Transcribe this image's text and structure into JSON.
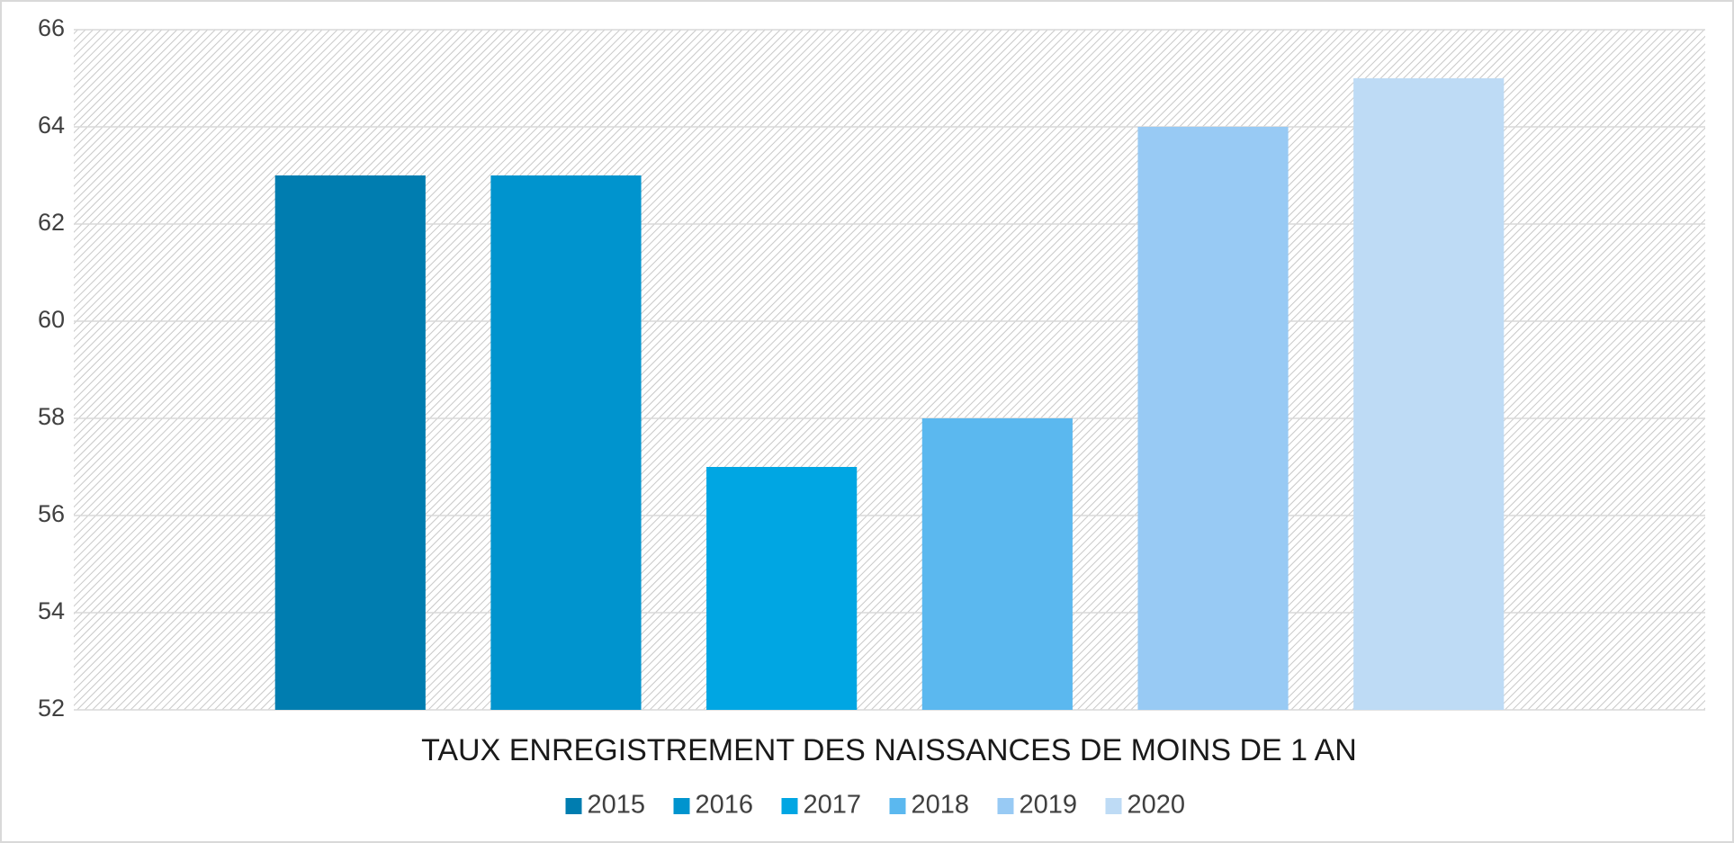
{
  "chart_data": {
    "type": "bar",
    "categories": [
      "TAUX ENREGISTREMENT DES NAISSANCES DE MOINS DE 1 AN"
    ],
    "series": [
      {
        "name": "2015",
        "color": "#007db0",
        "values": [
          63
        ]
      },
      {
        "name": "2016",
        "color": "#0094ce",
        "values": [
          63
        ]
      },
      {
        "name": "2017",
        "color": "#00a6e3",
        "values": [
          57
        ]
      },
      {
        "name": "2018",
        "color": "#5bb8ef",
        "values": [
          58
        ]
      },
      {
        "name": "2019",
        "color": "#98caf4",
        "values": [
          64
        ]
      },
      {
        "name": "2020",
        "color": "#bedbf5",
        "values": [
          65
        ]
      }
    ],
    "ylim": [
      52,
      66
    ],
    "yticks": [
      52,
      54,
      56,
      58,
      60,
      62,
      64,
      66
    ],
    "grid": true,
    "legend": "bottom"
  }
}
